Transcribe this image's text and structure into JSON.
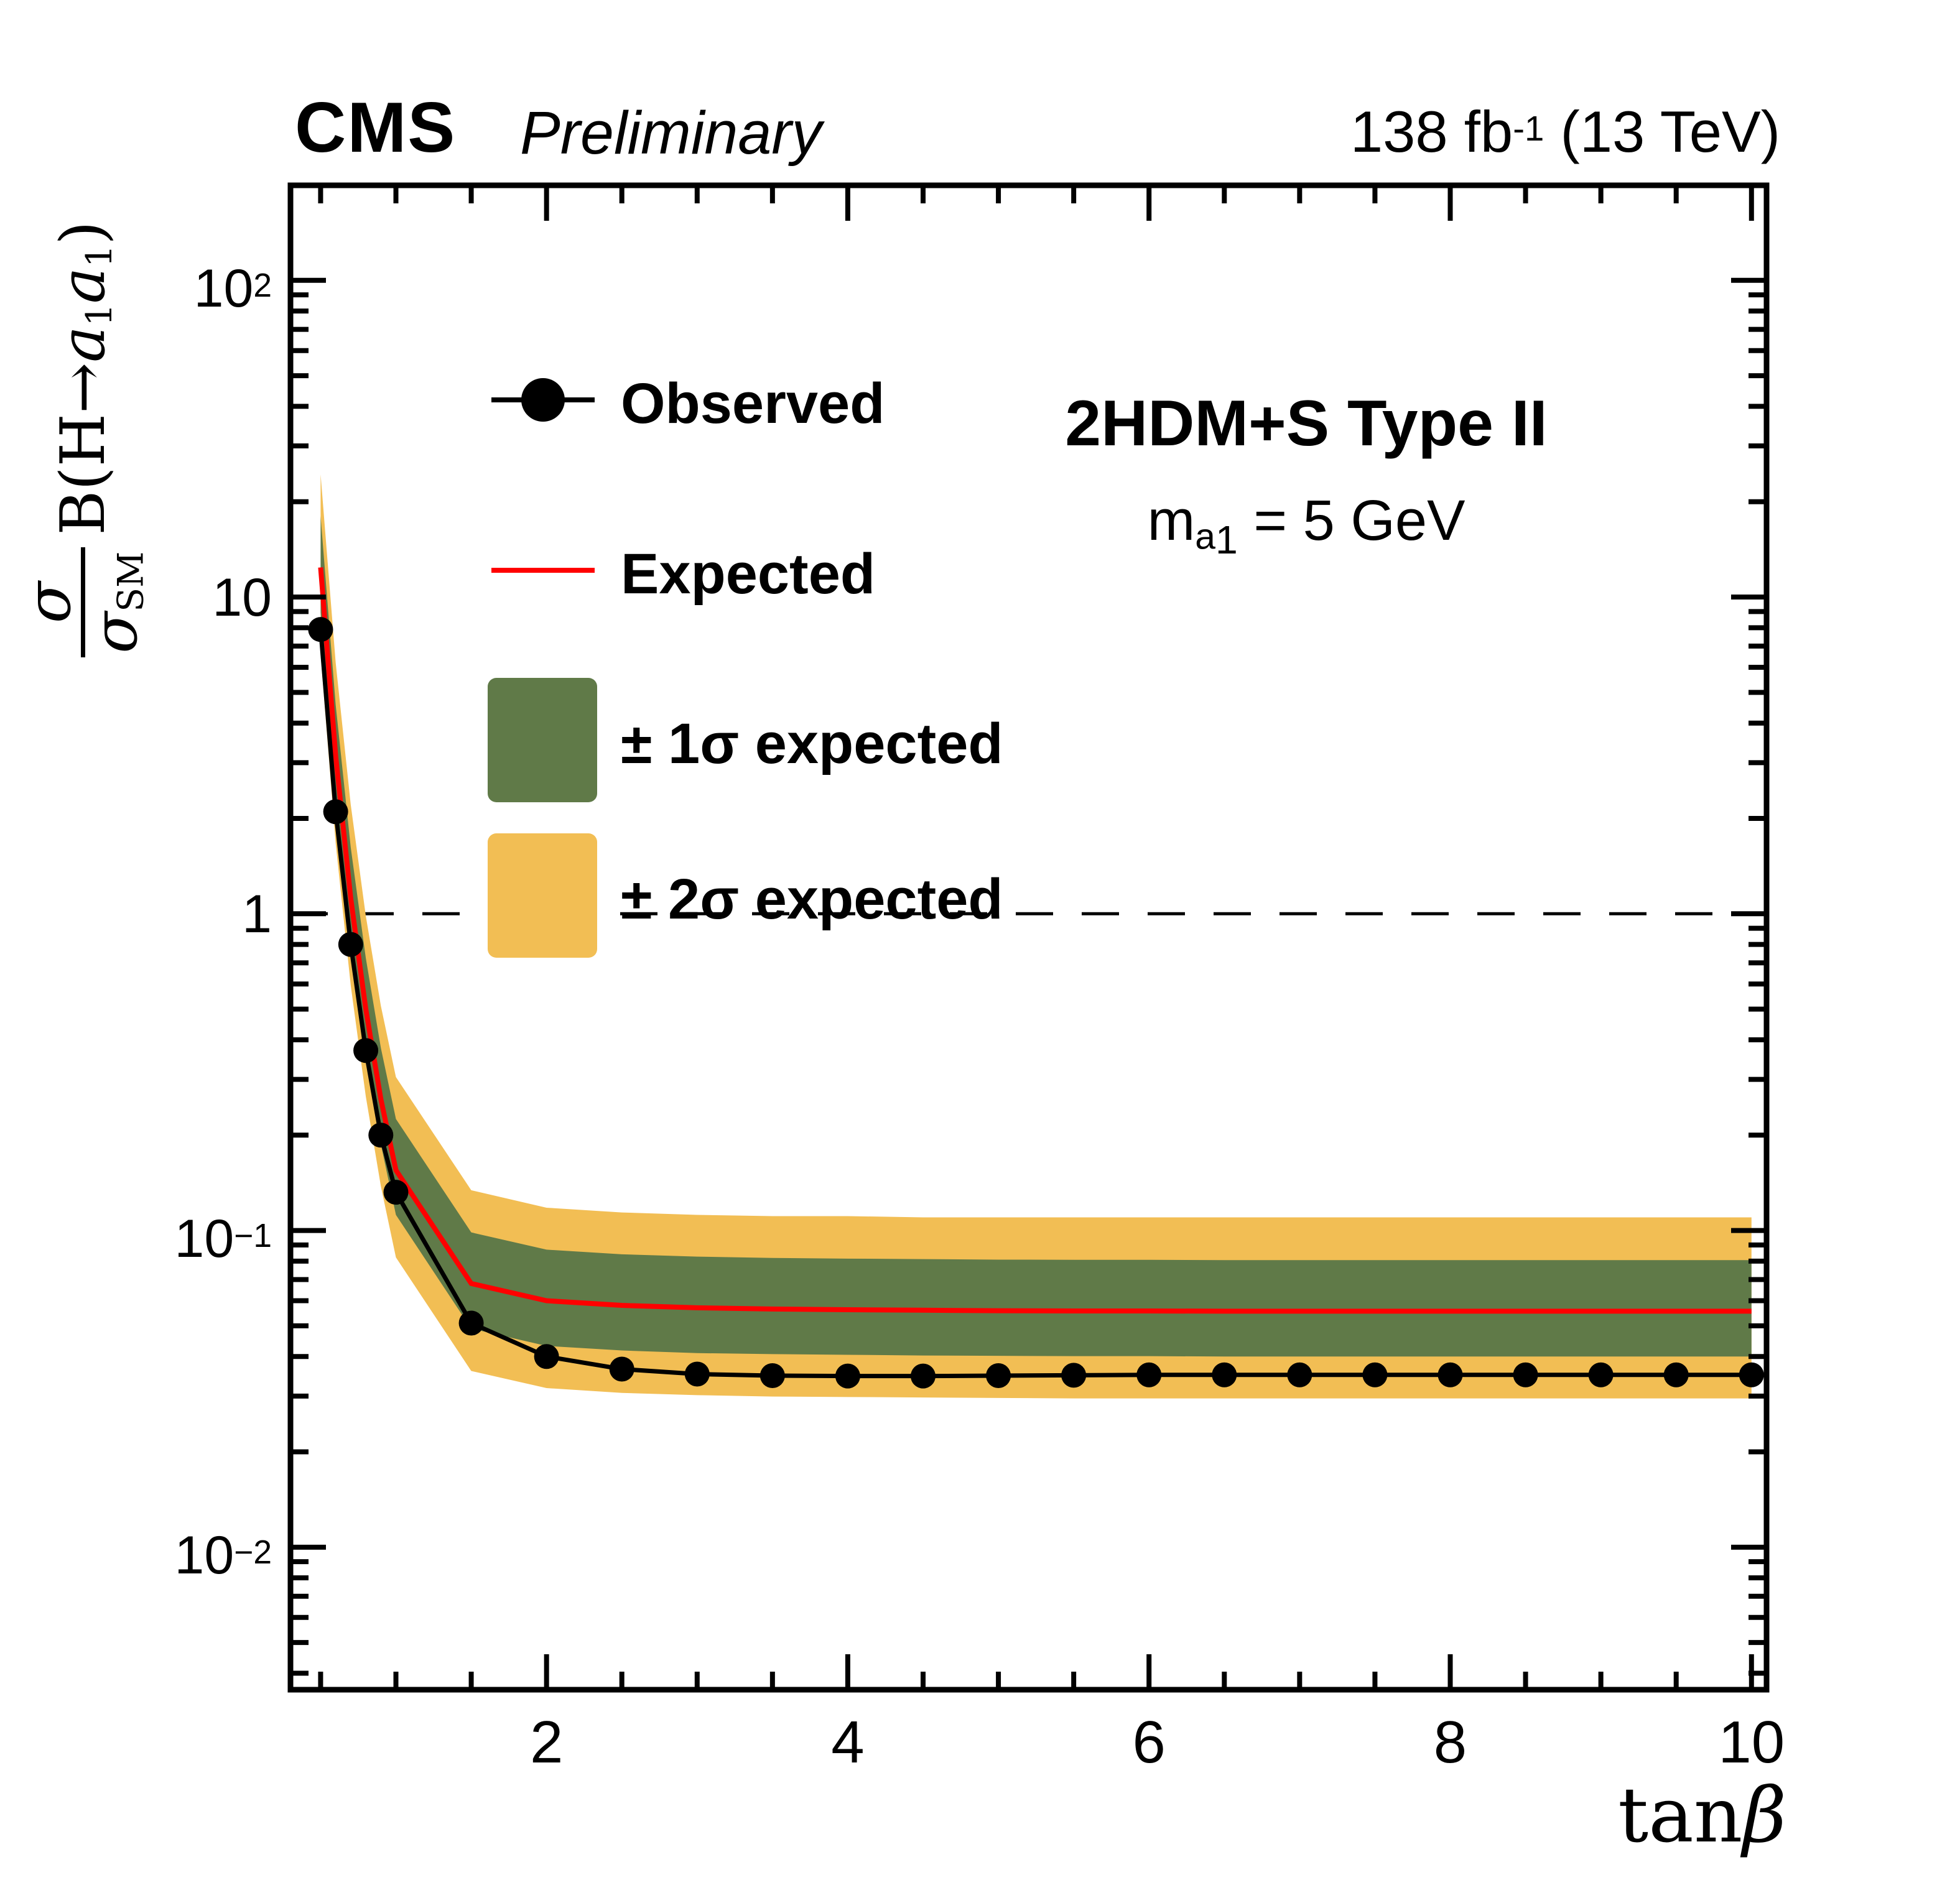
{
  "header": {
    "experiment": "CMS",
    "status": "Preliminary",
    "lumi_prefix": "138 fb",
    "lumi_sup": "-1",
    "lumi_suffix": " (13 TeV)"
  },
  "annotation": {
    "title": "2HDM+S Type II",
    "mass_symbol": "m",
    "mass_sub": "a",
    "mass_subsub": "1",
    "mass_rest": " = 5 GeV"
  },
  "legend": {
    "items": [
      {
        "label": "Observed",
        "type": "marker-line",
        "color": "#000000"
      },
      {
        "label": "Expected",
        "type": "line",
        "color": "#ff0000"
      },
      {
        "label": "± 1σ expected",
        "type": "band",
        "color": "#607a48"
      },
      {
        "label": "± 2σ expected",
        "type": "band",
        "color": "#f2be54"
      }
    ]
  },
  "y_title": {
    "num": "σ",
    "den_base": "σ",
    "den_sub": "SM",
    "r1": "B(H",
    "arrow": "→",
    "a1": "a",
    "s1": "1",
    "a2": "a",
    "s2": "1",
    "r2": ")"
  },
  "x_title": {
    "main": "tan",
    "beta": "β"
  },
  "colors": {
    "observed": "#000000",
    "expected": "#ff0000",
    "band_1sigma": "#607a48",
    "band_2sigma": "#f2be54",
    "frame": "#000000"
  },
  "chart_data": {
    "type": "line",
    "title": "2HDM+S Type II, m_a1 = 5 GeV",
    "xlabel": "tanβ",
    "ylabel": "σ/σ_SM B(H→a1a1)",
    "x_scale": "linear",
    "y_scale": "log",
    "xlim": [
      0.3,
      10.1
    ],
    "ylim_log10": [
      -2.45,
      2.3
    ],
    "x_ticks_major": [
      2,
      4,
      6,
      8,
      10
    ],
    "x_minor_step": 0.5,
    "y_ticks": [
      {
        "value": 100,
        "base": "10",
        "exp": "2"
      },
      {
        "value": 10,
        "base": "10",
        "exp": ""
      },
      {
        "value": 1,
        "base": "1",
        "exp": ""
      },
      {
        "value": 0.1,
        "base": "10",
        "exp": "−1"
      },
      {
        "value": 0.01,
        "base": "10",
        "exp": "−2"
      }
    ],
    "reference_line_y": 1,
    "grid": false,
    "legend_position": "upper-left-inside",
    "x": [
      0.5,
      0.6,
      0.7,
      0.8,
      0.9,
      1.0,
      1.5,
      2.0,
      2.5,
      3.0,
      3.5,
      4.0,
      4.5,
      5.0,
      5.5,
      6.0,
      6.5,
      7.0,
      7.5,
      8.0,
      8.5,
      9.0,
      9.5,
      10.0
    ],
    "series": [
      {
        "name": "Observed",
        "values": [
          7.9,
          2.1,
          0.8,
          0.37,
          0.2,
          0.132,
          0.051,
          0.04,
          0.0365,
          0.0352,
          0.0348,
          0.0347,
          0.0347,
          0.0348,
          0.0349,
          0.035,
          0.035,
          0.035,
          0.035,
          0.035,
          0.035,
          0.035,
          0.035,
          0.035
        ]
      },
      {
        "name": "Expected",
        "values": [
          12.4,
          3.15,
          1.12,
          0.5,
          0.26,
          0.155,
          0.068,
          0.06,
          0.058,
          0.057,
          0.0565,
          0.0562,
          0.056,
          0.0558,
          0.0557,
          0.0557,
          0.0556,
          0.0556,
          0.0556,
          0.0556,
          0.0556,
          0.0556,
          0.0556,
          0.0556
        ]
      },
      {
        "name": "Expected +1σ",
        "values": [
          18.0,
          4.57,
          1.62,
          0.725,
          0.377,
          0.225,
          0.0986,
          0.087,
          0.0841,
          0.0827,
          0.0819,
          0.0815,
          0.0812,
          0.0809,
          0.0808,
          0.0808,
          0.0806,
          0.0806,
          0.0806,
          0.0806,
          0.0806,
          0.0806,
          0.0806,
          0.0806
        ]
      },
      {
        "name": "Expected −1σ",
        "values": [
          8.93,
          2.27,
          0.806,
          0.36,
          0.187,
          0.112,
          0.049,
          0.0432,
          0.0418,
          0.041,
          0.0407,
          0.0405,
          0.0403,
          0.0402,
          0.0401,
          0.0401,
          0.04,
          0.04,
          0.04,
          0.04,
          0.04,
          0.04,
          0.04,
          0.04
        ]
      },
      {
        "name": "Expected +2σ",
        "values": [
          24.4,
          6.21,
          2.21,
          0.985,
          0.512,
          0.305,
          0.134,
          0.118,
          0.114,
          0.112,
          0.111,
          0.111,
          0.11,
          0.11,
          0.11,
          0.11,
          0.11,
          0.11,
          0.11,
          0.11,
          0.11,
          0.11,
          0.11,
          0.11
        ]
      },
      {
        "name": "Expected −2σ",
        "values": [
          6.57,
          1.67,
          0.594,
          0.265,
          0.138,
          0.0822,
          0.036,
          0.0318,
          0.0307,
          0.0302,
          0.0299,
          0.0298,
          0.0297,
          0.0296,
          0.0295,
          0.0295,
          0.0295,
          0.0295,
          0.0295,
          0.0295,
          0.0295,
          0.0295,
          0.0295,
          0.0295
        ]
      }
    ]
  }
}
